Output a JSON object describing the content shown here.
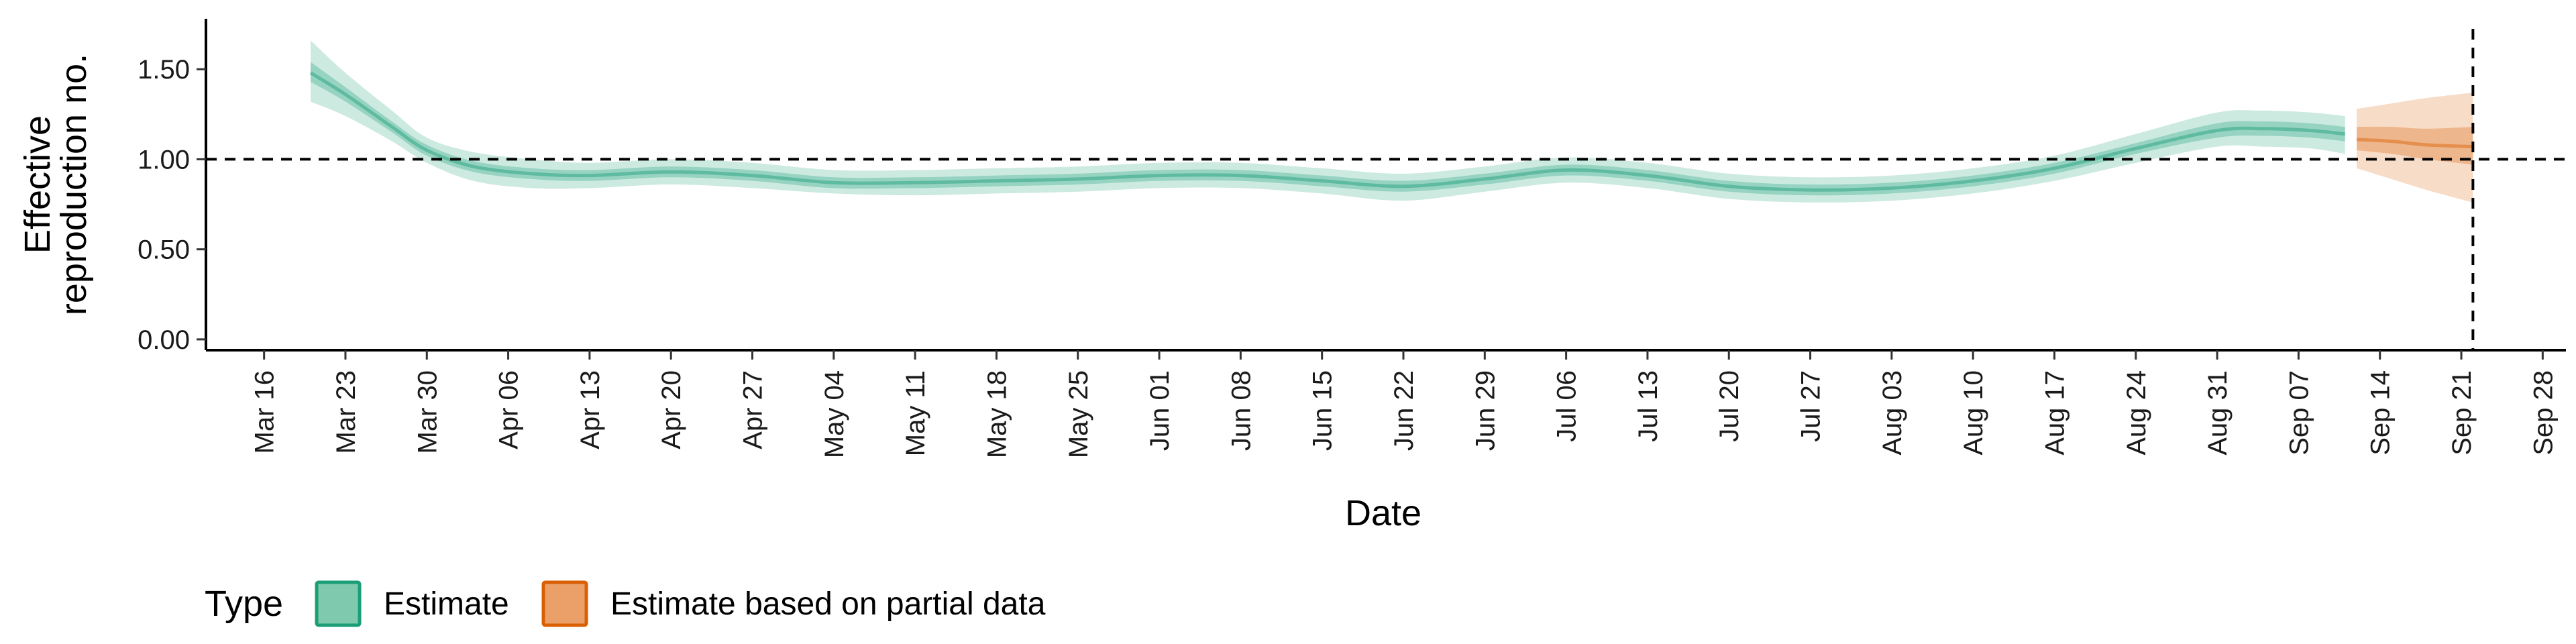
{
  "chart_data": {
    "type": "area",
    "xlabel": "Date",
    "ylabel_lines": [
      "Effective",
      "reproduction no."
    ],
    "x_range": [
      "2020-03-11",
      "2020-09-30"
    ],
    "ylim": [
      -0.06,
      1.78
    ],
    "y_ticks": [
      0.0,
      0.5,
      1.0,
      1.5
    ],
    "y_tick_labels": [
      "0.00",
      "0.50",
      "1.00",
      "1.50"
    ],
    "x_ticks": [
      "2020-03-16",
      "2020-03-23",
      "2020-03-30",
      "2020-04-06",
      "2020-04-13",
      "2020-04-20",
      "2020-04-27",
      "2020-05-04",
      "2020-05-11",
      "2020-05-18",
      "2020-05-25",
      "2020-06-01",
      "2020-06-08",
      "2020-06-15",
      "2020-06-22",
      "2020-06-29",
      "2020-07-06",
      "2020-07-13",
      "2020-07-20",
      "2020-07-27",
      "2020-08-03",
      "2020-08-10",
      "2020-08-17",
      "2020-08-24",
      "2020-08-31",
      "2020-09-07",
      "2020-09-14",
      "2020-09-21",
      "2020-09-28"
    ],
    "x_tick_labels": [
      "Mar 16",
      "Mar 23",
      "Mar 30",
      "Apr 06",
      "Apr 13",
      "Apr 20",
      "Apr 27",
      "May 04",
      "May 11",
      "May 18",
      "May 25",
      "Jun 01",
      "Jun 08",
      "Jun 15",
      "Jun 22",
      "Jun 29",
      "Jul 06",
      "Jul 13",
      "Jul 20",
      "Jul 27",
      "Aug 03",
      "Aug 10",
      "Aug 17",
      "Aug 24",
      "Aug 31",
      "Sep 07",
      "Sep 14",
      "Sep 21",
      "Sep 28"
    ],
    "reference_line_y": 1.0,
    "reference_line_x": "2020-09-22",
    "legend": {
      "title": "Type",
      "position": "bottom",
      "entries": [
        {
          "label": "Estimate",
          "fill": "#7fcaae",
          "stroke": "#1b9e77"
        },
        {
          "label": "Estimate based on partial data",
          "fill": "#eba06a",
          "stroke": "#d95f02"
        }
      ]
    },
    "series": [
      {
        "name": "Estimate",
        "color": "#1b9e77",
        "points": [
          {
            "x": "2020-03-20",
            "median": 1.48,
            "lower50": 1.43,
            "upper50": 1.54,
            "lower90": 1.32,
            "upper90": 1.66
          },
          {
            "x": "2020-03-23",
            "median": 1.36,
            "lower50": 1.32,
            "upper50": 1.4,
            "lower90": 1.24,
            "upper90": 1.48
          },
          {
            "x": "2020-03-27",
            "median": 1.18,
            "lower50": 1.15,
            "upper50": 1.21,
            "lower90": 1.1,
            "upper90": 1.27
          },
          {
            "x": "2020-03-30",
            "median": 1.05,
            "lower50": 1.02,
            "upper50": 1.08,
            "lower90": 0.98,
            "upper90": 1.12
          },
          {
            "x": "2020-04-03",
            "median": 0.96,
            "lower50": 0.93,
            "upper50": 0.99,
            "lower90": 0.88,
            "upper90": 1.04
          },
          {
            "x": "2020-04-08",
            "median": 0.92,
            "lower50": 0.89,
            "upper50": 0.95,
            "lower90": 0.84,
            "upper90": 1.0
          },
          {
            "x": "2020-04-13",
            "median": 0.91,
            "lower50": 0.88,
            "upper50": 0.94,
            "lower90": 0.84,
            "upper90": 0.98
          },
          {
            "x": "2020-04-20",
            "median": 0.93,
            "lower50": 0.9,
            "upper50": 0.96,
            "lower90": 0.86,
            "upper90": 1.0
          },
          {
            "x": "2020-04-27",
            "median": 0.91,
            "lower50": 0.88,
            "upper50": 0.94,
            "lower90": 0.84,
            "upper90": 0.98
          },
          {
            "x": "2020-05-04",
            "median": 0.87,
            "lower50": 0.84,
            "upper50": 0.9,
            "lower90": 0.81,
            "upper90": 0.94
          },
          {
            "x": "2020-05-11",
            "median": 0.87,
            "lower50": 0.84,
            "upper50": 0.9,
            "lower90": 0.8,
            "upper90": 0.94
          },
          {
            "x": "2020-05-18",
            "median": 0.88,
            "lower50": 0.85,
            "upper50": 0.91,
            "lower90": 0.81,
            "upper90": 0.95
          },
          {
            "x": "2020-05-25",
            "median": 0.89,
            "lower50": 0.86,
            "upper50": 0.92,
            "lower90": 0.82,
            "upper90": 0.96
          },
          {
            "x": "2020-06-01",
            "median": 0.91,
            "lower50": 0.88,
            "upper50": 0.94,
            "lower90": 0.84,
            "upper90": 0.98
          },
          {
            "x": "2020-06-08",
            "median": 0.91,
            "lower50": 0.88,
            "upper50": 0.94,
            "lower90": 0.84,
            "upper90": 0.98
          },
          {
            "x": "2020-06-15",
            "median": 0.88,
            "lower50": 0.85,
            "upper50": 0.91,
            "lower90": 0.81,
            "upper90": 0.95
          },
          {
            "x": "2020-06-22",
            "median": 0.85,
            "lower50": 0.82,
            "upper50": 0.88,
            "lower90": 0.77,
            "upper90": 0.92
          },
          {
            "x": "2020-06-29",
            "median": 0.89,
            "lower50": 0.86,
            "upper50": 0.92,
            "lower90": 0.82,
            "upper90": 0.96
          },
          {
            "x": "2020-07-06",
            "median": 0.94,
            "lower50": 0.91,
            "upper50": 0.97,
            "lower90": 0.87,
            "upper90": 1.01
          },
          {
            "x": "2020-07-13",
            "median": 0.91,
            "lower50": 0.88,
            "upper50": 0.94,
            "lower90": 0.84,
            "upper90": 0.98
          },
          {
            "x": "2020-07-20",
            "median": 0.85,
            "lower50": 0.82,
            "upper50": 0.88,
            "lower90": 0.78,
            "upper90": 0.92
          },
          {
            "x": "2020-07-27",
            "median": 0.83,
            "lower50": 0.8,
            "upper50": 0.86,
            "lower90": 0.76,
            "upper90": 0.9
          },
          {
            "x": "2020-08-03",
            "median": 0.84,
            "lower50": 0.81,
            "upper50": 0.87,
            "lower90": 0.77,
            "upper90": 0.91
          },
          {
            "x": "2020-08-10",
            "median": 0.88,
            "lower50": 0.85,
            "upper50": 0.91,
            "lower90": 0.81,
            "upper90": 0.95
          },
          {
            "x": "2020-08-17",
            "median": 0.95,
            "lower50": 0.92,
            "upper50": 0.98,
            "lower90": 0.88,
            "upper90": 1.02
          },
          {
            "x": "2020-08-24",
            "median": 1.06,
            "lower50": 1.03,
            "upper50": 1.09,
            "lower90": 0.98,
            "upper90": 1.14
          },
          {
            "x": "2020-08-31",
            "median": 1.16,
            "lower50": 1.12,
            "upper50": 1.2,
            "lower90": 1.07,
            "upper90": 1.26
          },
          {
            "x": "2020-09-04",
            "median": 1.17,
            "lower50": 1.13,
            "upper50": 1.21,
            "lower90": 1.07,
            "upper90": 1.27
          },
          {
            "x": "2020-09-08",
            "median": 1.16,
            "lower50": 1.12,
            "upper50": 1.2,
            "lower90": 1.06,
            "upper90": 1.26
          },
          {
            "x": "2020-09-11",
            "median": 1.14,
            "lower50": 1.1,
            "upper50": 1.18,
            "lower90": 1.03,
            "upper90": 1.24
          }
        ]
      },
      {
        "name": "Estimate based on partial data",
        "color": "#d95f02",
        "points": [
          {
            "x": "2020-09-12",
            "median": 1.11,
            "lower50": 1.05,
            "upper50": 1.18,
            "lower90": 0.95,
            "upper90": 1.28
          },
          {
            "x": "2020-09-15",
            "median": 1.1,
            "lower50": 1.03,
            "upper50": 1.18,
            "lower90": 0.89,
            "upper90": 1.31
          },
          {
            "x": "2020-09-18",
            "median": 1.08,
            "lower50": 1.0,
            "upper50": 1.17,
            "lower90": 0.83,
            "upper90": 1.34
          },
          {
            "x": "2020-09-22",
            "median": 1.07,
            "lower50": 0.97,
            "upper50": 1.18,
            "lower90": 0.76,
            "upper90": 1.37
          }
        ]
      }
    ]
  }
}
